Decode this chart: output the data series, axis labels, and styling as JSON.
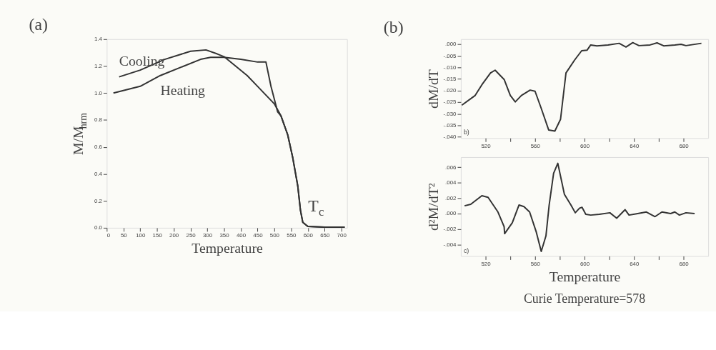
{
  "chart_data": [
    {
      "type": "line",
      "title": "(a)",
      "xlabel": "Temperature",
      "ylabel": "M/M$_{hrm}$",
      "xlim": [
        0,
        717
      ],
      "ylim": [
        0,
        1.4
      ],
      "xticks": [
        0,
        50,
        100,
        150,
        200,
        250,
        300,
        350,
        400,
        450,
        500,
        550,
        600,
        650,
        700
      ],
      "yticks": [
        {
          "value": 0,
          "label": "0.0"
        },
        {
          "value": 0.2,
          "label": "0.2"
        },
        {
          "value": 0.4,
          "label": "0.4"
        },
        {
          "value": 0.6,
          "label": "0.6"
        },
        {
          "value": 0.8,
          "label": "0.8"
        },
        {
          "value": 1.0,
          "label": "1.0"
        },
        {
          "value": 1.2,
          "label": "1.2"
        },
        {
          "value": 1.4,
          "label": "1.4"
        }
      ],
      "grid": false,
      "marker": "none",
      "line_style": "solid",
      "annotations": [
        "T$_{c}$"
      ],
      "series": [
        {
          "name": "Cooling",
          "color": "#333333",
          "x": [
            37,
            100,
            173,
            250,
            296,
            330,
            350,
            419,
            450,
            500,
            520,
            540,
            555,
            570,
            578,
            585,
            600,
            650,
            710
          ],
          "values": [
            1.12,
            1.17,
            1.25,
            1.31,
            1.32,
            1.29,
            1.27,
            1.13,
            1.05,
            0.92,
            0.83,
            0.69,
            0.52,
            0.31,
            0.13,
            0.04,
            0.01,
            0.005,
            0.005
          ]
        },
        {
          "name": "Heating",
          "color": "#333333",
          "x": [
            20,
            100,
            160,
            220,
            280,
            310,
            350,
            400,
            450,
            475,
            490,
            510,
            520,
            540,
            555,
            570,
            578,
            585,
            600,
            650,
            710
          ],
          "values": [
            1.0,
            1.05,
            1.13,
            1.19,
            1.25,
            1.265,
            1.265,
            1.25,
            1.23,
            1.23,
            1.05,
            0.86,
            0.83,
            0.69,
            0.52,
            0.31,
            0.13,
            0.04,
            0.01,
            0.005,
            0.005
          ]
        }
      ]
    },
    {
      "type": "line",
      "title": "(b)",
      "ylabel": "dM/dT",
      "xlim": [
        500,
        700
      ],
      "ylim": [
        -0.0405,
        0.0022
      ],
      "xticks": [
        520,
        {
          "value": 540,
          "label": null
        },
        560,
        {
          "value": 580,
          "label": null
        },
        600,
        {
          "value": 620,
          "label": null
        },
        640,
        {
          "value": 660,
          "label": null
        },
        680
      ],
      "yticks": [
        {
          "value": 0,
          "label": ".000"
        },
        {
          "value": -0.005,
          "label": "-.005"
        },
        {
          "value": -0.01,
          "label": "-.010"
        },
        {
          "value": -0.015,
          "label": "-.015"
        },
        {
          "value": -0.02,
          "label": "-.020"
        },
        {
          "value": -0.025,
          "label": "-.025"
        },
        {
          "value": -0.03,
          "label": "-.030"
        },
        {
          "value": -0.035,
          "label": "-.035"
        },
        {
          "value": -0.04,
          "label": "-.040"
        }
      ],
      "grid": false,
      "marker": "none",
      "line_style": "solid",
      "annotations": [
        "b)"
      ],
      "series": [
        {
          "color": "#333333",
          "x": [
            500.8,
            511.6,
            517,
            524,
            527.7,
            535,
            540,
            544,
            549,
            556,
            560,
            565,
            571,
            576,
            580.6,
            585,
            592,
            597.7,
            602,
            605,
            610,
            619,
            628,
            633.5,
            639,
            644,
            653,
            658.6,
            664,
            673,
            678,
            682,
            694.5
          ],
          "values": [
            -0.0263,
            -0.0221,
            -0.0175,
            -0.0124,
            -0.0112,
            -0.0152,
            -0.0221,
            -0.0249,
            -0.0221,
            -0.0198,
            -0.0203,
            -0.0277,
            -0.037,
            -0.0375,
            -0.0324,
            -0.0124,
            -0.0068,
            -0.0028,
            -0.0026,
            -0.0003,
            -0.0007,
            -0.0003,
            0.0004,
            -0.0012,
            0.0007,
            -0.0006,
            -0.0003,
            0.0006,
            -0.0007,
            -0.0003,
            0.0,
            -0.0006,
            0.0004
          ]
        }
      ]
    },
    {
      "type": "line",
      "xlabel": "Temperature",
      "ylabel": "d²M/dT²",
      "xlim": [
        500,
        700
      ],
      "ylim": [
        -0.0055,
        0.0073
      ],
      "xticks": [
        520,
        {
          "value": 540,
          "label": null
        },
        560,
        {
          "value": 580,
          "label": null
        },
        600,
        {
          "value": 620,
          "label": null
        },
        640,
        {
          "value": 660,
          "label": null
        },
        680
      ],
      "yticks": [
        {
          "value": 0.006,
          "label": ".006"
        },
        {
          "value": 0.004,
          "label": ".004"
        },
        {
          "value": 0.002,
          "label": ".002"
        },
        {
          "value": 0,
          "label": ".000"
        },
        {
          "value": -0.002,
          "label": "-.002"
        },
        {
          "value": -0.004,
          "label": "-.004"
        }
      ],
      "grid": false,
      "marker": "none",
      "line_style": "solid",
      "annotations": [
        "c)",
        "Curie Temperature=578"
      ],
      "series": [
        {
          "color": "#333333",
          "x": [
            503,
            508,
            517,
            522,
            530,
            535,
            535.4,
            541.6,
            547,
            551,
            555.6,
            561,
            565,
            568.8,
            571.4,
            575,
            578.4,
            583.7,
            589,
            592.5,
            596,
            598,
            601,
            605,
            612,
            620.5,
            626,
            632.8,
            636,
            643,
            650,
            657,
            662.6,
            669.6,
            673,
            676.7,
            682,
            689
          ],
          "values": [
            0.001,
            0.0012,
            0.0023,
            0.0021,
            0.0002,
            -0.0017,
            -0.0026,
            -0.0012,
            0.0011,
            0.0009,
            0.0002,
            -0.0024,
            -0.0049,
            -0.0029,
            0.0011,
            0.0052,
            0.0065,
            0.0025,
            0.0011,
            0.0001,
            0.0007,
            0.0008,
            -0.0001,
            -0.0002,
            -0.0001,
            0.0001,
            -0.0006,
            0.0005,
            -0.0002,
            0.0,
            0.0002,
            -0.0004,
            0.0002,
            0.0,
            0.0002,
            -0.0002,
            0.0001,
            0.0
          ]
        }
      ]
    }
  ]
}
